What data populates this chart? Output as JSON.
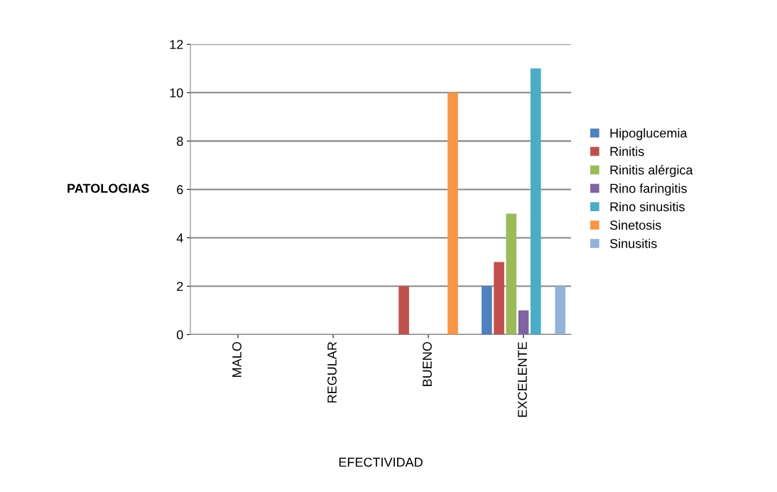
{
  "chart_data": {
    "type": "bar",
    "xlabel": "EFECTIVIDAD",
    "ylabel": "PATOLOGIAS",
    "categories": [
      "MALO",
      "REGULAR",
      "BUENO",
      "EXCELENTE"
    ],
    "series": [
      {
        "name": "Hipoglucemia",
        "color": "#4f81bd",
        "values": [
          null,
          null,
          null,
          2
        ]
      },
      {
        "name": "Rinitis",
        "color": "#c0504d",
        "values": [
          null,
          null,
          2,
          3
        ]
      },
      {
        "name": "Rinitis alérgica",
        "color": "#9bbb59",
        "values": [
          null,
          null,
          null,
          5
        ]
      },
      {
        "name": "Rino faringitis",
        "color": "#8064a2",
        "values": [
          null,
          null,
          null,
          1
        ]
      },
      {
        "name": "Rino sinusitis",
        "color": "#4bacc6",
        "values": [
          null,
          null,
          null,
          11
        ]
      },
      {
        "name": "Sinetosis",
        "color": "#f79646",
        "values": [
          null,
          null,
          10,
          null
        ]
      },
      {
        "name": "Sinusitis",
        "color": "#95b3d7",
        "values": [
          null,
          null,
          null,
          2
        ]
      }
    ],
    "ylim": [
      0,
      12
    ],
    "yticks": [
      0,
      2,
      4,
      6,
      8,
      10,
      12
    ],
    "grid": "y",
    "legend": "right"
  }
}
